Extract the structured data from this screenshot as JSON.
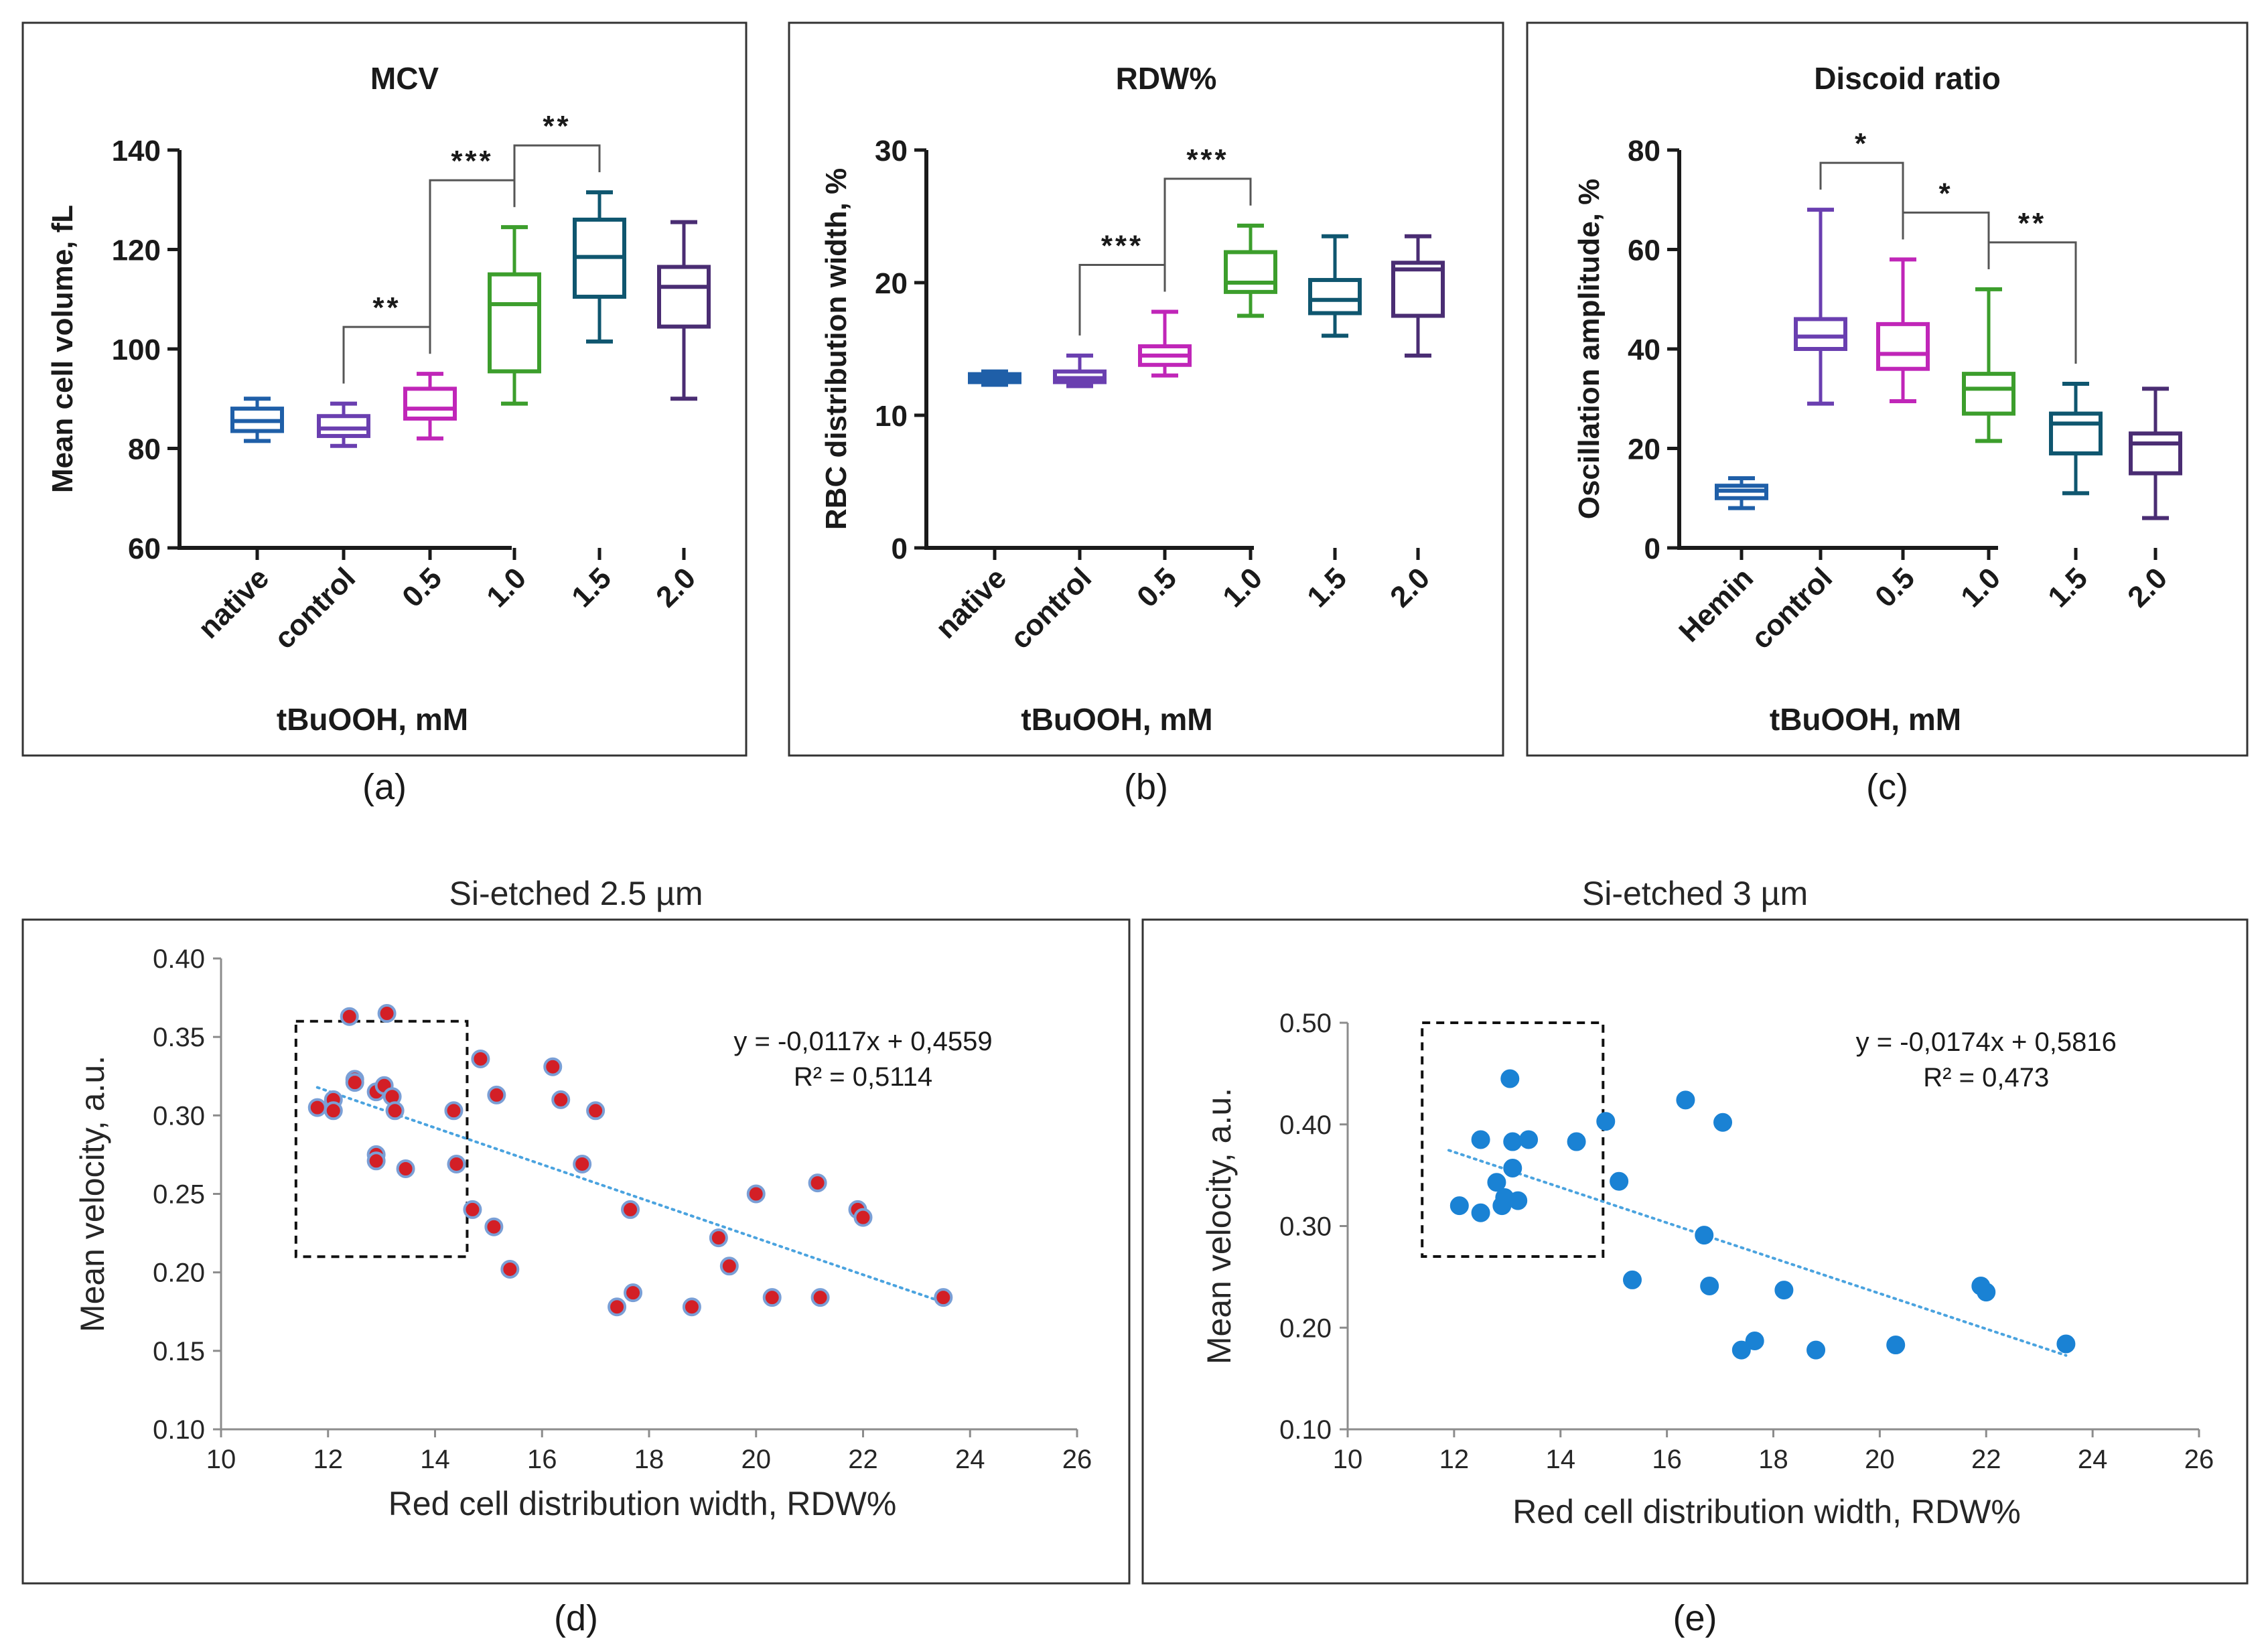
{
  "figure": {
    "description_panels": [
      "a",
      "b",
      "c",
      "d",
      "e"
    ]
  },
  "chart_data": [
    {
      "id": "a",
      "type": "box",
      "title": "MCV",
      "ylabel": "Mean cell volume, fL",
      "xlabel": "tBuOOH, mM",
      "panel_label": "(a)",
      "ylim": [
        60,
        140
      ],
      "yticks": [
        60,
        80,
        100,
        120,
        140
      ],
      "categories": [
        "native",
        "control",
        "0.5",
        "1.0",
        "1.5",
        "2.0"
      ],
      "colors": [
        "#1f5fa8",
        "#6a3fb0",
        "#c026b8",
        "#3c9e2c",
        "#0f566f",
        "#4a2d73"
      ],
      "boxes": [
        {
          "min": 81.5,
          "q1": 83.5,
          "median": 85.5,
          "q3": 88,
          "max": 90
        },
        {
          "min": 80.5,
          "q1": 82.5,
          "median": 84,
          "q3": 86.5,
          "max": 89
        },
        {
          "min": 82,
          "q1": 86,
          "median": 88,
          "q3": 92,
          "max": 95
        },
        {
          "min": 89,
          "q1": 95.5,
          "median": 109,
          "q3": 115,
          "max": 124.5
        },
        {
          "min": 101.5,
          "q1": 110.5,
          "median": 118.5,
          "q3": 126,
          "max": 131.5
        },
        {
          "min": 90,
          "q1": 104.5,
          "median": 112.5,
          "q3": 116.5,
          "max": 125.5
        }
      ],
      "significance": [
        {
          "from": 1,
          "to": 2,
          "label": "**"
        },
        {
          "from": 2,
          "to": 3,
          "label": "***"
        },
        {
          "from": 3,
          "to": 4,
          "label": "**"
        }
      ]
    },
    {
      "id": "b",
      "type": "box",
      "title": "RDW%",
      "ylabel": "RBC distribution width, %",
      "xlabel": "tBuOOH, mM",
      "panel_label": "(b)",
      "ylim": [
        0,
        30
      ],
      "yticks": [
        0,
        10,
        20,
        30
      ],
      "categories": [
        "native",
        "control",
        "0.5",
        "1.0",
        "1.5",
        "2.0"
      ],
      "colors": [
        "#1f5fa8",
        "#6a3fb0",
        "#c026b8",
        "#3c9e2c",
        "#0f566f",
        "#4a2d73"
      ],
      "boxes": [
        {
          "min": 12.3,
          "q1": 12.5,
          "median": 12.8,
          "q3": 13.1,
          "max": 13.3
        },
        {
          "min": 12.2,
          "q1": 12.5,
          "median": 12.8,
          "q3": 13.3,
          "max": 14.5
        },
        {
          "min": 13,
          "q1": 13.8,
          "median": 14.5,
          "q3": 15.2,
          "max": 17.8
        },
        {
          "min": 17.5,
          "q1": 19.3,
          "median": 20,
          "q3": 22.3,
          "max": 24.3
        },
        {
          "min": 16,
          "q1": 17.7,
          "median": 18.7,
          "q3": 20.2,
          "max": 23.5
        },
        {
          "min": 14.5,
          "q1": 17.5,
          "median": 21,
          "q3": 21.5,
          "max": 23.5
        }
      ],
      "significance": [
        {
          "from": 1,
          "to": 2,
          "label": "***"
        },
        {
          "from": 2,
          "to": 3,
          "label": "***"
        }
      ]
    },
    {
      "id": "c",
      "type": "box",
      "title": "Discoid ratio",
      "ylabel": "Oscillation amplitude, %",
      "xlabel": "tBuOOH, mM",
      "panel_label": "(c)",
      "ylim": [
        0,
        80
      ],
      "yticks": [
        0,
        20,
        40,
        60,
        80
      ],
      "categories": [
        "Hemin",
        "control",
        "0.5",
        "1.0",
        "1.5",
        "2.0"
      ],
      "colors": [
        "#1f5fa8",
        "#6a3fb0",
        "#c026b8",
        "#3c9e2c",
        "#0f566f",
        "#4a2d73"
      ],
      "boxes": [
        {
          "min": 8,
          "q1": 10,
          "median": 11.5,
          "q3": 12.5,
          "max": 14
        },
        {
          "min": 29,
          "q1": 40,
          "median": 42.5,
          "q3": 46,
          "max": 68
        },
        {
          "min": 29.5,
          "q1": 36,
          "median": 39,
          "q3": 45,
          "max": 58
        },
        {
          "min": 21.5,
          "q1": 27,
          "median": 32,
          "q3": 35,
          "max": 52
        },
        {
          "min": 11,
          "q1": 19,
          "median": 25,
          "q3": 27,
          "max": 33
        },
        {
          "min": 6,
          "q1": 15,
          "median": 21,
          "q3": 23,
          "max": 32
        }
      ],
      "significance": [
        {
          "from": 1,
          "to": 2,
          "label": "*"
        },
        {
          "from": 2,
          "to": 3,
          "label": "*"
        },
        {
          "from": 3,
          "to": 4,
          "label": "**"
        }
      ]
    },
    {
      "id": "d",
      "type": "scatter",
      "title": "Si-etched 2.5 µm",
      "xlabel": "Red cell distribution width, RDW%",
      "ylabel": "Mean velocity, a.u.",
      "panel_label": "(d)",
      "xlim": [
        10,
        26
      ],
      "ylim": [
        0.1,
        0.4
      ],
      "xticks": [
        10,
        12,
        14,
        16,
        18,
        20,
        22,
        24,
        26
      ],
      "yticks": [
        "0.10",
        "0.15",
        "0.20",
        "0.25",
        "0.30",
        "0.35",
        "0.40"
      ],
      "marker_fill": "#d31f26",
      "marker_edge": "#7a9fd6",
      "trendline": {
        "slope": -0.0117,
        "intercept": 0.4559,
        "x_range": [
          11.8,
          23.5
        ]
      },
      "equation": "y = -0,0117x + 0,4559",
      "r_squared": "R² = 0,5114",
      "highlight_box": {
        "x": [
          11.4,
          14.6
        ],
        "y": [
          0.21,
          0.36
        ]
      },
      "x": [
        11.8,
        12.1,
        12.1,
        12.4,
        12.5,
        12.5,
        12.9,
        12.9,
        12.9,
        13.05,
        13.1,
        13.2,
        13.25,
        13.45,
        14.35,
        14.4,
        14.7,
        14.85,
        15.1,
        15.15,
        15.4,
        16.2,
        16.35,
        16.75,
        17.0,
        17.4,
        17.65,
        17.7,
        18.8,
        19.3,
        19.5,
        20.0,
        20.3,
        21.15,
        21.2,
        21.9,
        22.0,
        23.5
      ],
      "y": [
        0.305,
        0.31,
        0.303,
        0.363,
        0.323,
        0.321,
        0.315,
        0.275,
        0.271,
        0.319,
        0.365,
        0.312,
        0.303,
        0.266,
        0.303,
        0.269,
        0.24,
        0.336,
        0.229,
        0.313,
        0.202,
        0.331,
        0.31,
        0.269,
        0.303,
        0.178,
        0.24,
        0.187,
        0.178,
        0.222,
        0.204,
        0.25,
        0.184,
        0.257,
        0.184,
        0.24,
        0.235,
        0.184
      ]
    },
    {
      "id": "e",
      "type": "scatter",
      "title": "Si-etched 3 µm",
      "xlabel": "Red cell distribution width, RDW%",
      "ylabel": "Mean velocity, a.u.",
      "panel_label": "(e)",
      "xlim": [
        10,
        26
      ],
      "ylim": [
        0.1,
        0.5
      ],
      "xticks": [
        10,
        12,
        14,
        16,
        18,
        20,
        22,
        24,
        26
      ],
      "yticks": [
        "0.10",
        "0.20",
        "0.30",
        "0.40",
        "0.50"
      ],
      "marker_fill": "#1a82d4",
      "marker_edge": "#1a82d4",
      "trendline": {
        "slope": -0.0174,
        "intercept": 0.5816,
        "x_range": [
          11.9,
          23.5
        ]
      },
      "equation": "y = -0,0174x + 0,5816",
      "r_squared": "R² = 0,473",
      "highlight_box": {
        "x": [
          11.4,
          14.8
        ],
        "y": [
          0.27,
          0.5
        ]
      },
      "x": [
        12.1,
        12.5,
        12.5,
        12.8,
        12.9,
        12.95,
        13.05,
        13.1,
        13.1,
        13.2,
        13.4,
        14.3,
        14.85,
        15.1,
        15.35,
        16.35,
        16.7,
        16.8,
        17.05,
        17.4,
        17.65,
        18.2,
        18.8,
        20.3,
        21.9,
        22.0,
        23.5
      ],
      "y": [
        0.32,
        0.313,
        0.385,
        0.343,
        0.32,
        0.328,
        0.445,
        0.357,
        0.383,
        0.325,
        0.385,
        0.383,
        0.403,
        0.344,
        0.247,
        0.424,
        0.291,
        0.241,
        0.402,
        0.178,
        0.187,
        0.237,
        0.178,
        0.183,
        0.241,
        0.235,
        0.184
      ]
    }
  ]
}
